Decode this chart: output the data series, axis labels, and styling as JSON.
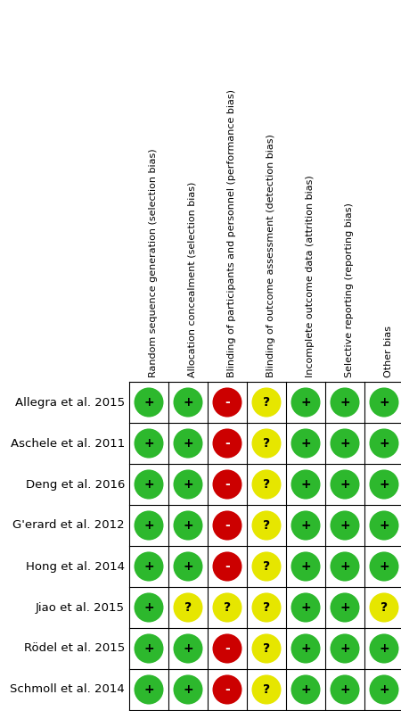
{
  "studies": [
    "Allegra et al. 2015",
    "Aschele et al. 2011",
    "Deng et al. 2016",
    "G'erard et al. 2012",
    "Hong et al. 2014",
    "Jiao et al. 2015",
    "Rödel et al. 2015",
    "Schmoll et al. 2014"
  ],
  "columns": [
    "Random sequence generation (selection bias)",
    "Allocation concealment (selection bias)",
    "Blinding of participants and personnel (performance bias)",
    "Blinding of outcome assessment (detection bias)",
    "Incomplete outcome data (attrition bias)",
    "Selective reporting (reporting bias)",
    "Other bias"
  ],
  "ratings": [
    [
      "+",
      "+",
      "-",
      "?",
      "+",
      "+",
      "+"
    ],
    [
      "+",
      "+",
      "-",
      "?",
      "+",
      "+",
      "+"
    ],
    [
      "+",
      "+",
      "-",
      "?",
      "+",
      "+",
      "+"
    ],
    [
      "+",
      "+",
      "-",
      "?",
      "+",
      "+",
      "+"
    ],
    [
      "+",
      "+",
      "-",
      "?",
      "+",
      "+",
      "+"
    ],
    [
      "+",
      "?",
      "?",
      "?",
      "+",
      "+",
      "?"
    ],
    [
      "+",
      "+",
      "-",
      "?",
      "+",
      "+",
      "+"
    ],
    [
      "+",
      "+",
      "-",
      "?",
      "+",
      "+",
      "+"
    ]
  ],
  "colors": {
    "+": "#2db82d",
    "-": "#cc0000",
    "?": "#e6e600"
  },
  "symbol_text_colors": {
    "+": "#000000",
    "-": "#ffffff",
    "?": "#000000"
  },
  "background": "#ffffff",
  "grid_color": "#000000",
  "text_color": "#000000",
  "header_fontsize": 8.0,
  "study_fontsize": 9.5,
  "symbol_fontsize": 10,
  "fig_width": 4.5,
  "fig_height": 7.97,
  "dpi": 100
}
